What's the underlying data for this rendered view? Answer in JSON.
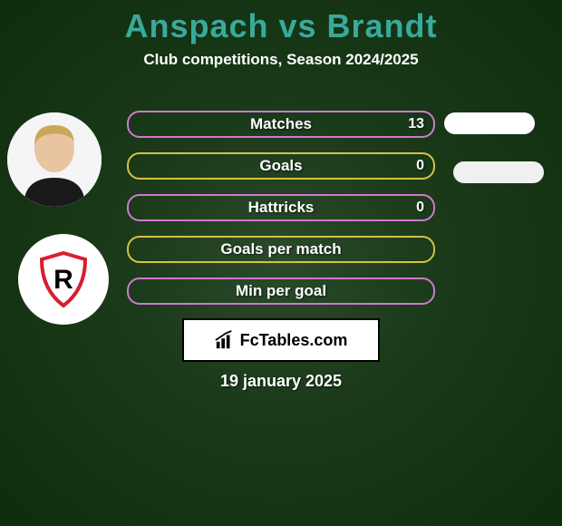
{
  "title_color": "#3aa99a",
  "title": "Anspach vs Brandt",
  "subtitle": "Club competitions, Season 2024/2025",
  "date": "19 january 2025",
  "fctables_label": "FcTables.com",
  "stat_rows": [
    {
      "label": "Matches",
      "value": "13",
      "border": "#d078d0"
    },
    {
      "label": "Goals",
      "value": "0",
      "border": "#d4c242"
    },
    {
      "label": "Hattricks",
      "value": "0",
      "border": "#d078d0"
    },
    {
      "label": "Goals per match",
      "value": "",
      "border": "#d4c242"
    },
    {
      "label": "Min per goal",
      "value": "",
      "border": "#d078d0"
    }
  ],
  "pills": [
    {
      "class": "pill-1"
    },
    {
      "class": "pill-2"
    }
  ],
  "player_hair_color": "#c9a85a",
  "player_skin_color": "#e8c4a0",
  "player_shirt_color": "#1a1a1a",
  "club_badge": {
    "border": "#000",
    "accent": "#d91e2e",
    "letter": "R"
  }
}
